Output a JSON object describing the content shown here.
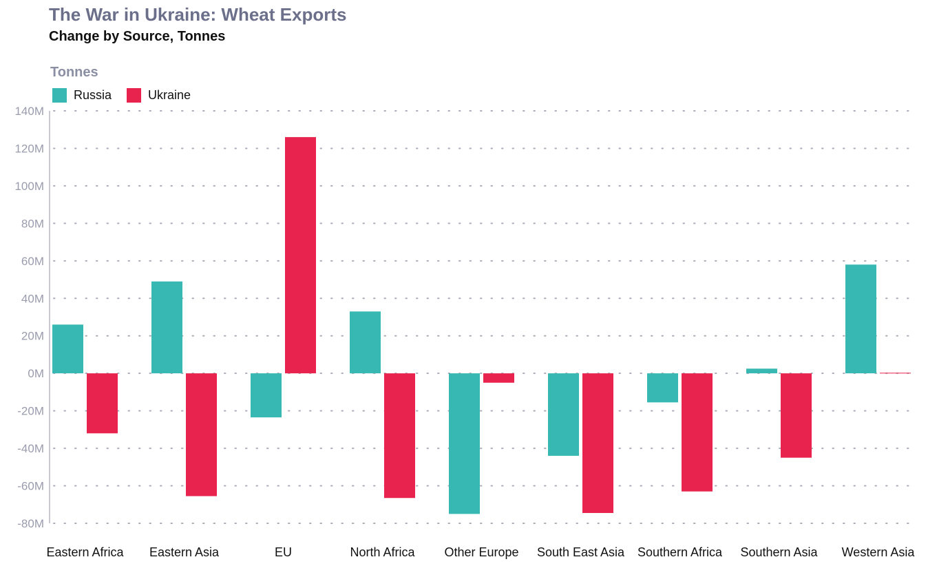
{
  "chart_data": {
    "type": "bar",
    "title": "The War in Ukraine: Wheat Exports",
    "subtitle": "Change by Source, Tonnes",
    "ylabel": "Tonnes",
    "xlabel": "",
    "categories": [
      "Eastern Africa",
      "Eastern Asia",
      "EU",
      "North Africa",
      "Other Europe",
      "South East Asia",
      "Southern Africa",
      "Southern Asia",
      "Western Asia"
    ],
    "series": [
      {
        "name": "Russia",
        "color": "#38b8b2",
        "values": [
          26000000,
          49000000,
          -23500000,
          33000000,
          -75000000,
          -44000000,
          -15500000,
          2500000,
          58000000
        ]
      },
      {
        "name": "Ukraine",
        "color": "#e8234d",
        "values": [
          -32000000,
          -65500000,
          126000000,
          -66500000,
          -5000000,
          -74500000,
          -63000000,
          -45000000,
          300000
        ]
      }
    ],
    "ylim": [
      -80000000,
      140000000
    ],
    "yticks": [
      {
        "value": 140000000,
        "label": "140M"
      },
      {
        "value": 120000000,
        "label": "120M"
      },
      {
        "value": 100000000,
        "label": "100M"
      },
      {
        "value": 80000000,
        "label": "80M"
      },
      {
        "value": 60000000,
        "label": "60M"
      },
      {
        "value": 40000000,
        "label": "40M"
      },
      {
        "value": 20000000,
        "label": "20M"
      },
      {
        "value": 0,
        "label": "0M"
      },
      {
        "value": -20000000,
        "label": "-20M"
      },
      {
        "value": -40000000,
        "label": "-40M"
      },
      {
        "value": -60000000,
        "label": "-60M"
      },
      {
        "value": -80000000,
        "label": "-80M"
      }
    ],
    "grid": "dotted horizontal",
    "legend": "top-left"
  }
}
